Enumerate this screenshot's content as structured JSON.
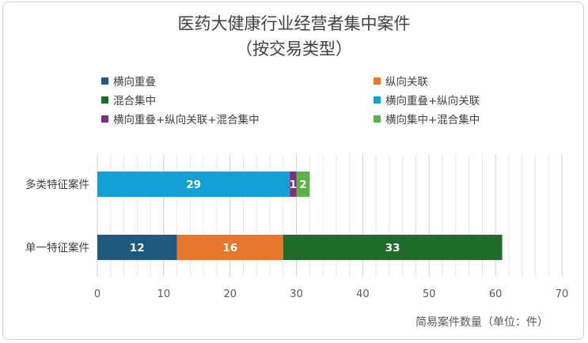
{
  "colors": {
    "横向重叠": "#1f5a7e",
    "纵向关联": "#e8772e",
    "混合集中": "#1e6b2a",
    "横向重叠+纵向关联": "#12a0d7",
    "横向重叠+纵向关联+混合集中": "#7b2e83",
    "横向集中+混合集中": "#5eb148"
  },
  "chart_data": {
    "type": "bar",
    "orientation": "horizontal",
    "stacked": true,
    "title": "医药大健康行业经营者集中案件",
    "subtitle": "（按交易类型）",
    "xlabel": "简易案件数量（单位：件）",
    "ylabel": "",
    "xlim": [
      0,
      70
    ],
    "xticks": [
      0,
      10,
      20,
      30,
      40,
      50,
      60,
      70
    ],
    "grid": true,
    "legend_position": "top",
    "categories": [
      "多类特征案件",
      "单一特征案件"
    ],
    "series": [
      {
        "name": "横向重叠",
        "values": [
          0,
          12
        ]
      },
      {
        "name": "纵向关联",
        "values": [
          0,
          16
        ]
      },
      {
        "name": "混合集中",
        "values": [
          0,
          33
        ]
      },
      {
        "name": "横向重叠+纵向关联",
        "values": [
          29,
          0
        ]
      },
      {
        "name": "横向重叠+纵向关联+混合集中",
        "values": [
          1,
          0
        ]
      },
      {
        "name": "横向集中+混合集中",
        "values": [
          2,
          0
        ]
      }
    ]
  }
}
